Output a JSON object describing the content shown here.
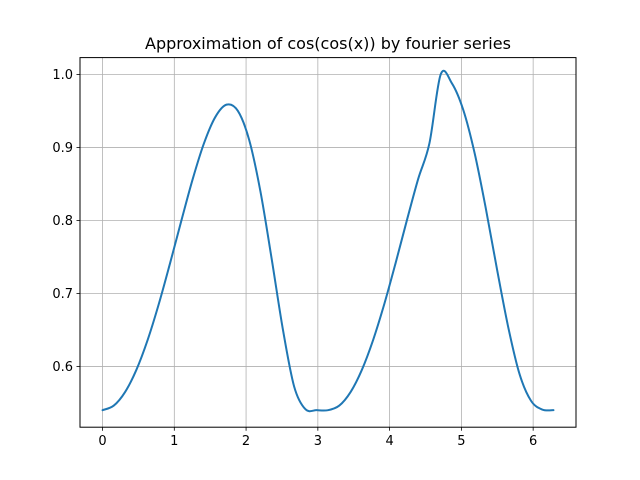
{
  "chart_data": {
    "type": "line",
    "title": "Approximation of cos(cos(x)) by fourier series",
    "xlabel": "",
    "ylabel": "",
    "xlim": [
      -0.314,
      6.597
    ],
    "ylim": [
      0.517,
      1.023
    ],
    "x_ticks": [
      0,
      1,
      2,
      3,
      4,
      5,
      6
    ],
    "x_tick_labels": [
      "0",
      "1",
      "2",
      "3",
      "4",
      "5",
      "6"
    ],
    "y_ticks": [
      0.6,
      0.7,
      0.8,
      0.9,
      1.0
    ],
    "y_tick_labels": [
      "0.6",
      "0.7",
      "0.8",
      "0.9",
      "1.0"
    ],
    "grid": true,
    "legend": "none",
    "series": [
      {
        "color": "#1f77b4",
        "x": [
          0.0,
          0.157,
          0.314,
          0.471,
          0.628,
          0.785,
          0.942,
          1.1,
          1.257,
          1.414,
          1.571,
          1.728,
          1.885,
          2.042,
          2.199,
          2.356,
          2.513,
          2.67,
          2.827,
          2.985,
          3.142,
          3.299,
          3.456,
          3.613,
          3.77,
          3.927,
          4.084,
          4.241,
          4.398,
          4.555,
          4.712,
          4.869,
          5.027,
          5.184,
          5.341,
          5.498,
          5.655,
          5.812,
          5.969,
          6.126,
          6.283
        ],
        "y": [
          0.5403,
          0.5466,
          0.5651,
          0.5954,
          0.6363,
          0.686,
          0.7419,
          0.8004,
          0.8569,
          0.9058,
          0.9416,
          0.9586,
          0.9501,
          0.9107,
          0.8403,
          0.7479,
          0.6508,
          0.5726,
          0.5416,
          0.5403,
          0.5403,
          0.5466,
          0.5651,
          0.5954,
          0.6363,
          0.686,
          0.7419,
          0.8004,
          0.8569,
          0.9058,
          1.0,
          0.9876,
          0.9511,
          0.8924,
          0.8162,
          0.7323,
          0.6529,
          0.5892,
          0.5534,
          0.5412,
          0.5403
        ]
      }
    ]
  }
}
